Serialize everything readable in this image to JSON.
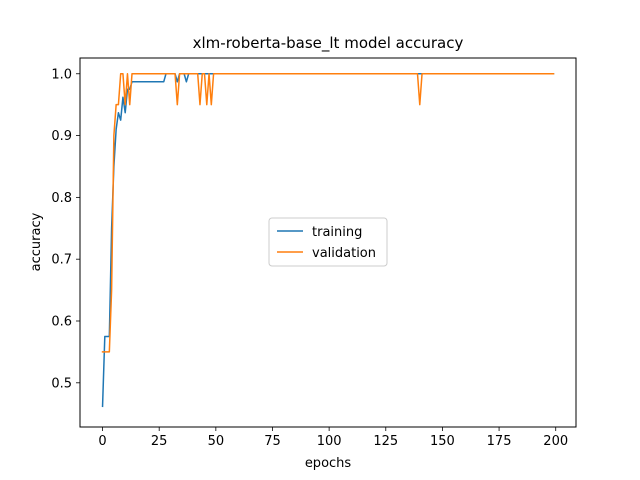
{
  "chart_data": {
    "type": "line",
    "title": "xlm-roberta-base_lt model accuracy",
    "xlabel": "epochs",
    "ylabel": "accuracy",
    "xlim": [
      -9.95,
      208.95
    ],
    "ylim": [
      0.4285,
      1.0255
    ],
    "xticks": [
      0,
      25,
      50,
      75,
      100,
      125,
      150,
      175,
      200
    ],
    "yticks": [
      0.5,
      0.6,
      0.7,
      0.8,
      0.9,
      1.0
    ],
    "ytick_labels": [
      "0.5",
      "0.6",
      "0.7",
      "0.8",
      "0.9",
      "1.0"
    ],
    "legend": {
      "position": "center-right"
    },
    "colors": {
      "training": "#1f77b4",
      "validation": "#ff7f0e"
    },
    "series": [
      {
        "name": "training",
        "color": "#1f77b4",
        "points": [
          [
            0,
            0.462
          ],
          [
            1,
            0.575
          ],
          [
            2,
            0.575
          ],
          [
            3,
            0.575
          ],
          [
            4,
            0.75
          ],
          [
            5,
            0.85
          ],
          [
            6,
            0.91
          ],
          [
            7,
            0.937
          ],
          [
            8,
            0.925
          ],
          [
            9,
            0.962
          ],
          [
            10,
            0.937
          ],
          [
            11,
            0.975
          ],
          [
            12,
            0.975
          ],
          [
            13,
            0.987
          ],
          [
            14,
            0.987
          ],
          [
            20,
            0.987
          ],
          [
            27,
            0.987
          ],
          [
            28,
            1.0
          ],
          [
            32,
            1.0
          ],
          [
            33,
            0.987
          ],
          [
            34,
            1.0
          ],
          [
            36,
            1.0
          ],
          [
            37,
            0.987
          ],
          [
            38,
            1.0
          ],
          [
            199,
            1.0
          ]
        ]
      },
      {
        "name": "validation",
        "color": "#ff7f0e",
        "points": [
          [
            0,
            0.55
          ],
          [
            1,
            0.55
          ],
          [
            2,
            0.55
          ],
          [
            3,
            0.55
          ],
          [
            4,
            0.65
          ],
          [
            5,
            0.9
          ],
          [
            6,
            0.95
          ],
          [
            7,
            0.95
          ],
          [
            8,
            1.0
          ],
          [
            9,
            1.0
          ],
          [
            10,
            0.95
          ],
          [
            11,
            1.0
          ],
          [
            12,
            0.95
          ],
          [
            13,
            1.0
          ],
          [
            32,
            1.0
          ],
          [
            33,
            0.95
          ],
          [
            34,
            1.0
          ],
          [
            42,
            1.0
          ],
          [
            43,
            0.95
          ],
          [
            44,
            1.0
          ],
          [
            45,
            1.0
          ],
          [
            46,
            0.95
          ],
          [
            47,
            1.0
          ],
          [
            48,
            0.95
          ],
          [
            49,
            1.0
          ],
          [
            139,
            1.0
          ],
          [
            140,
            0.95
          ],
          [
            141,
            1.0
          ],
          [
            199,
            1.0
          ]
        ]
      }
    ]
  }
}
